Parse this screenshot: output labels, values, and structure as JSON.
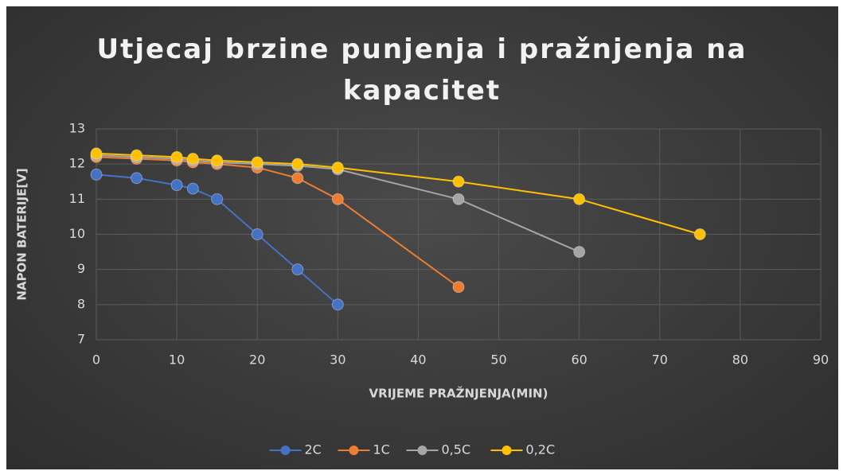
{
  "chart_data": {
    "type": "scatter",
    "title": "Utjecaj brzine punjenja i pražnjenja na kapacitet",
    "x_label": "VRIJEME PRAŽNJENJA(MIN)",
    "y_label": "NAPON BATERIJE[V]",
    "xlim": [
      0,
      90
    ],
    "xticks": [
      0,
      10,
      20,
      30,
      40,
      50,
      60,
      70,
      80,
      90
    ],
    "ylim": [
      7,
      13
    ],
    "yticks": [
      7,
      8,
      9,
      10,
      11,
      12,
      13
    ],
    "grid": true,
    "legend": "bottom",
    "series": [
      {
        "name": "2C",
        "color": "#4472c4",
        "x": [
          0,
          5,
          10,
          12,
          15,
          20,
          25,
          30
        ],
        "values": [
          11.7,
          11.6,
          11.4,
          11.3,
          11.0,
          10.0,
          9.0,
          8.0
        ]
      },
      {
        "name": "1C",
        "color": "#ed7d31",
        "x": [
          0,
          5,
          10,
          12,
          15,
          20,
          25,
          30,
          45
        ],
        "values": [
          12.2,
          12.15,
          12.1,
          12.05,
          12.0,
          11.9,
          11.6,
          11.0,
          8.5
        ]
      },
      {
        "name": "0,5C",
        "color": "#a5a5a5",
        "x": [
          0,
          5,
          10,
          12,
          15,
          20,
          25,
          30,
          45,
          60
        ],
        "values": [
          12.25,
          12.2,
          12.15,
          12.1,
          12.05,
          12.0,
          11.95,
          11.85,
          11.0,
          9.5
        ]
      },
      {
        "name": "0,2C",
        "color": "#ffc000",
        "x": [
          0,
          5,
          10,
          12,
          15,
          20,
          25,
          30,
          45,
          60,
          75
        ],
        "values": [
          12.3,
          12.25,
          12.2,
          12.15,
          12.1,
          12.05,
          12.0,
          11.9,
          11.5,
          11.0,
          10.0
        ]
      }
    ]
  }
}
